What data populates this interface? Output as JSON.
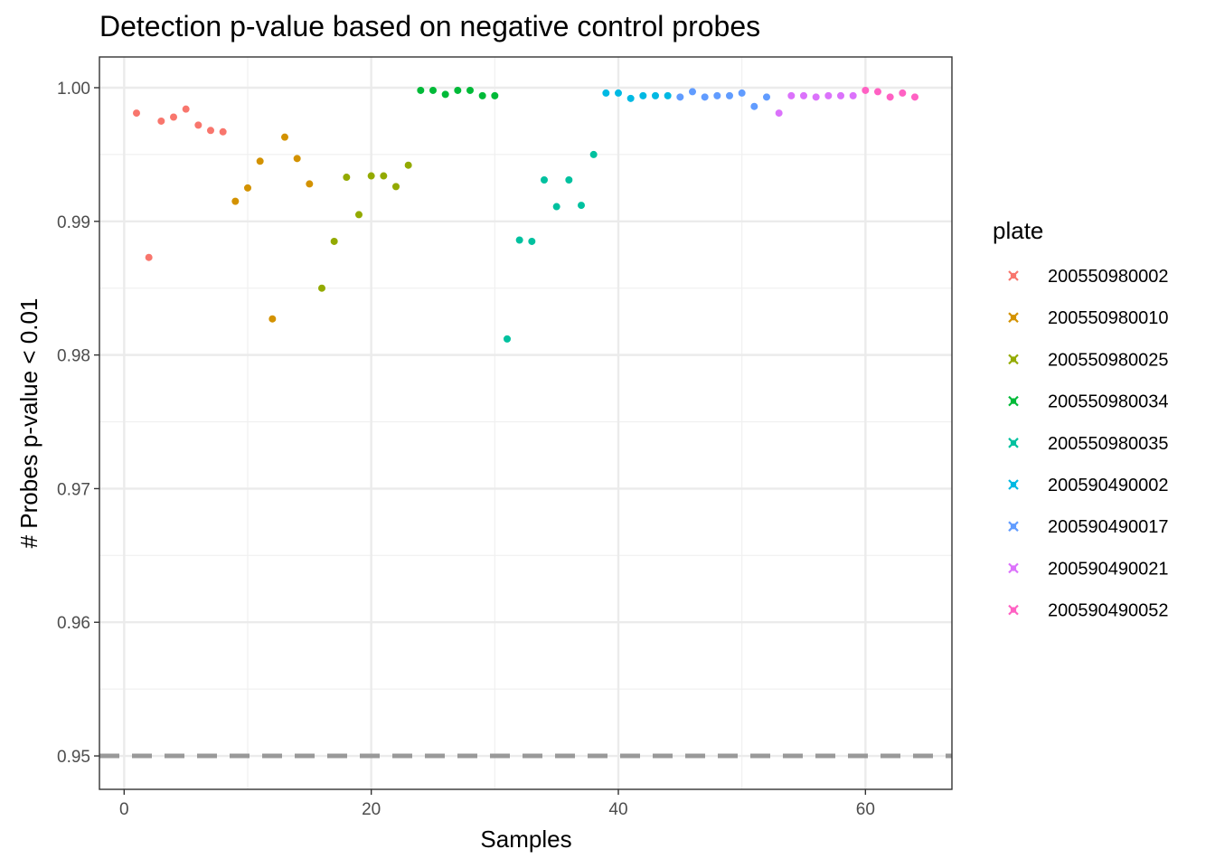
{
  "chart_data": {
    "type": "scatter",
    "title": "Detection p-value based on negative control probes",
    "xlabel": "Samples",
    "ylabel": "# Probes p-value < 0.01",
    "xlim": [
      -2,
      67
    ],
    "ylim": [
      0.9475,
      1.0023
    ],
    "x_ticks": [
      0,
      20,
      40,
      60
    ],
    "x_tick_labels": [
      "0",
      "20",
      "40",
      "60"
    ],
    "y_ticks": [
      0.95,
      0.96,
      0.97,
      0.98,
      0.99,
      1.0
    ],
    "y_tick_labels": [
      "0.95",
      "0.96",
      "0.97",
      "0.98",
      "0.99",
      "1.00"
    ],
    "grid": true,
    "threshold_line": {
      "y": 0.95,
      "style": "dashed",
      "color": "#999999"
    },
    "legend": {
      "title": "plate",
      "position": "right"
    },
    "series": [
      {
        "name": "200550980002",
        "color": "#F8766D",
        "points": [
          [
            1,
            0.9981
          ],
          [
            2,
            0.9873
          ],
          [
            3,
            0.9975
          ],
          [
            4,
            0.9978
          ],
          [
            5,
            0.9984
          ],
          [
            6,
            0.9972
          ],
          [
            7,
            0.9968
          ],
          [
            8,
            0.9967
          ]
        ]
      },
      {
        "name": "200550980010",
        "color": "#D39200",
        "points": [
          [
            9,
            0.9915
          ],
          [
            10,
            0.9925
          ],
          [
            11,
            0.9945
          ],
          [
            12,
            0.9827
          ],
          [
            13,
            0.9963
          ],
          [
            14,
            0.9947
          ],
          [
            15,
            0.9928
          ]
        ]
      },
      {
        "name": "200550980025",
        "color": "#93AA00",
        "points": [
          [
            16,
            0.985
          ],
          [
            17,
            0.9885
          ],
          [
            18,
            0.9933
          ],
          [
            19,
            0.9905
          ],
          [
            20,
            0.9934
          ],
          [
            21,
            0.9934
          ],
          [
            22,
            0.9926
          ],
          [
            23,
            0.9942
          ]
        ]
      },
      {
        "name": "200550980034",
        "color": "#00BA38",
        "points": [
          [
            24,
            0.9998
          ],
          [
            25,
            0.9998
          ],
          [
            26,
            0.9995
          ],
          [
            27,
            0.9998
          ],
          [
            28,
            0.9998
          ],
          [
            29,
            0.9994
          ],
          [
            30,
            0.9994
          ]
        ]
      },
      {
        "name": "200550980035",
        "color": "#00C19F",
        "points": [
          [
            31,
            0.9812
          ],
          [
            32,
            0.9886
          ],
          [
            33,
            0.9885
          ],
          [
            34,
            0.9931
          ],
          [
            35,
            0.9911
          ],
          [
            36,
            0.9931
          ],
          [
            37,
            0.9912
          ],
          [
            38,
            0.995
          ]
        ]
      },
      {
        "name": "200590490002",
        "color": "#00B9E3",
        "points": [
          [
            39,
            0.9996
          ],
          [
            40,
            0.9996
          ],
          [
            41,
            0.9992
          ],
          [
            42,
            0.9994
          ],
          [
            43,
            0.9994
          ],
          [
            44,
            0.9994
          ]
        ]
      },
      {
        "name": "200590490017",
        "color": "#619CFF",
        "points": [
          [
            45,
            0.9993
          ],
          [
            46,
            0.9997
          ],
          [
            47,
            0.9993
          ],
          [
            48,
            0.9994
          ],
          [
            49,
            0.9994
          ],
          [
            50,
            0.9996
          ],
          [
            51,
            0.9986
          ],
          [
            52,
            0.9993
          ]
        ]
      },
      {
        "name": "200590490021",
        "color": "#DB72FB",
        "points": [
          [
            53,
            0.9981
          ],
          [
            54,
            0.9994
          ],
          [
            55,
            0.9994
          ],
          [
            56,
            0.9993
          ],
          [
            57,
            0.9994
          ],
          [
            58,
            0.9994
          ],
          [
            59,
            0.9994
          ]
        ]
      },
      {
        "name": "200590490052",
        "color": "#FF61C3",
        "points": [
          [
            60,
            0.9998
          ],
          [
            61,
            0.9997
          ],
          [
            62,
            0.9993
          ],
          [
            63,
            0.9996
          ],
          [
            64,
            0.9993
          ]
        ]
      }
    ]
  }
}
